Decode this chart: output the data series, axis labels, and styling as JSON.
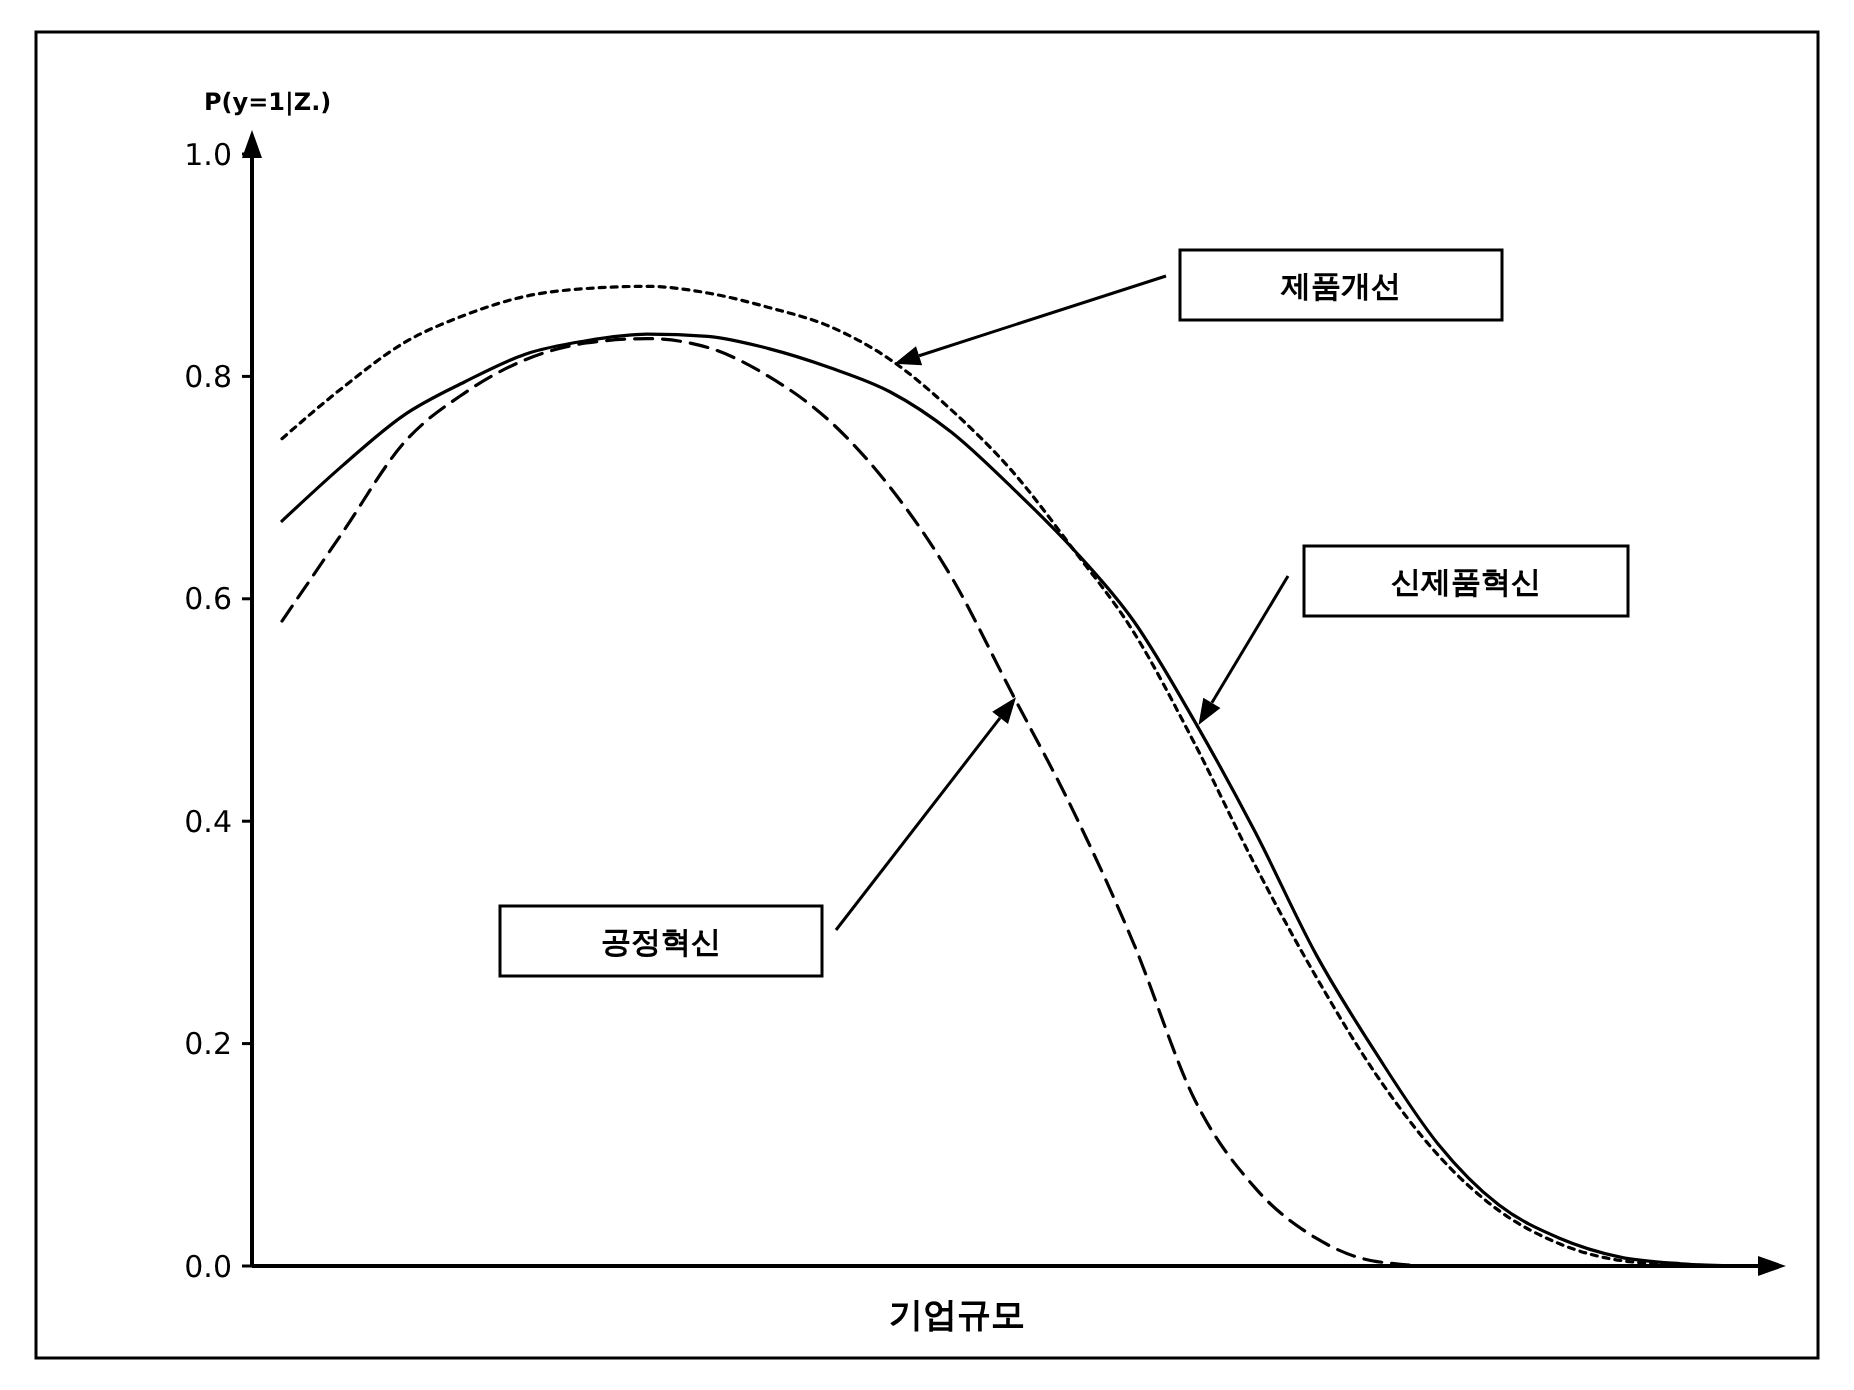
{
  "chart_data": {
    "type": "line",
    "ylabel": "P(y=1|Z.)",
    "xlabel": "기업규모",
    "categories": [
      null,
      null,
      null,
      null,
      null,
      null,
      null,
      null,
      null,
      null,
      null,
      null,
      null,
      null,
      null,
      null,
      null,
      null,
      null,
      null,
      null,
      null,
      null,
      null,
      null
    ],
    "series": [
      {
        "name": "신제품혁신",
        "color": "#000000",
        "line_style": "solid",
        "values": [
          0.67,
          0.72,
          0.765,
          0.795,
          0.82,
          0.832,
          0.838,
          0.836,
          0.825,
          0.808,
          0.786,
          0.75,
          0.7,
          0.645,
          0.58,
          0.49,
          0.39,
          0.28,
          0.19,
          0.11,
          0.055,
          0.025,
          0.008,
          0.002,
          0
        ]
      },
      {
        "name": "제품개선",
        "color": "#000000",
        "line_style": "dotted",
        "values": [
          0.744,
          0.79,
          0.83,
          0.855,
          0.872,
          0.879,
          0.881,
          0.875,
          0.862,
          0.845,
          0.815,
          0.77,
          0.715,
          0.645,
          0.57,
          0.47,
          0.36,
          0.26,
          0.171,
          0.1,
          0.05,
          0.02,
          0.005,
          0.001,
          0
        ]
      },
      {
        "name": "공정혁신",
        "color": "#000000",
        "line_style": "dashed",
        "values": [
          0.58,
          0.66,
          0.74,
          0.785,
          0.815,
          0.83,
          0.834,
          0.826,
          0.8,
          0.76,
          0.7,
          0.62,
          0.515,
          0.41,
          0.29,
          0.15,
          0.07,
          0.025,
          0.004,
          0,
          0,
          0,
          0,
          0,
          0
        ]
      }
    ],
    "ylim": [
      0,
      1
    ],
    "yticks": [
      {
        "value": 0,
        "label": "0.0"
      },
      {
        "value": 0.2,
        "label": "0.2"
      },
      {
        "value": 0.4,
        "label": "0.4"
      },
      {
        "value": 0.6,
        "label": "0.6"
      },
      {
        "value": 0.8,
        "label": "0.8"
      },
      {
        "value": 1,
        "label": "1.0"
      }
    ],
    "tick_labels": "y",
    "grid": false,
    "marker": "none"
  }
}
